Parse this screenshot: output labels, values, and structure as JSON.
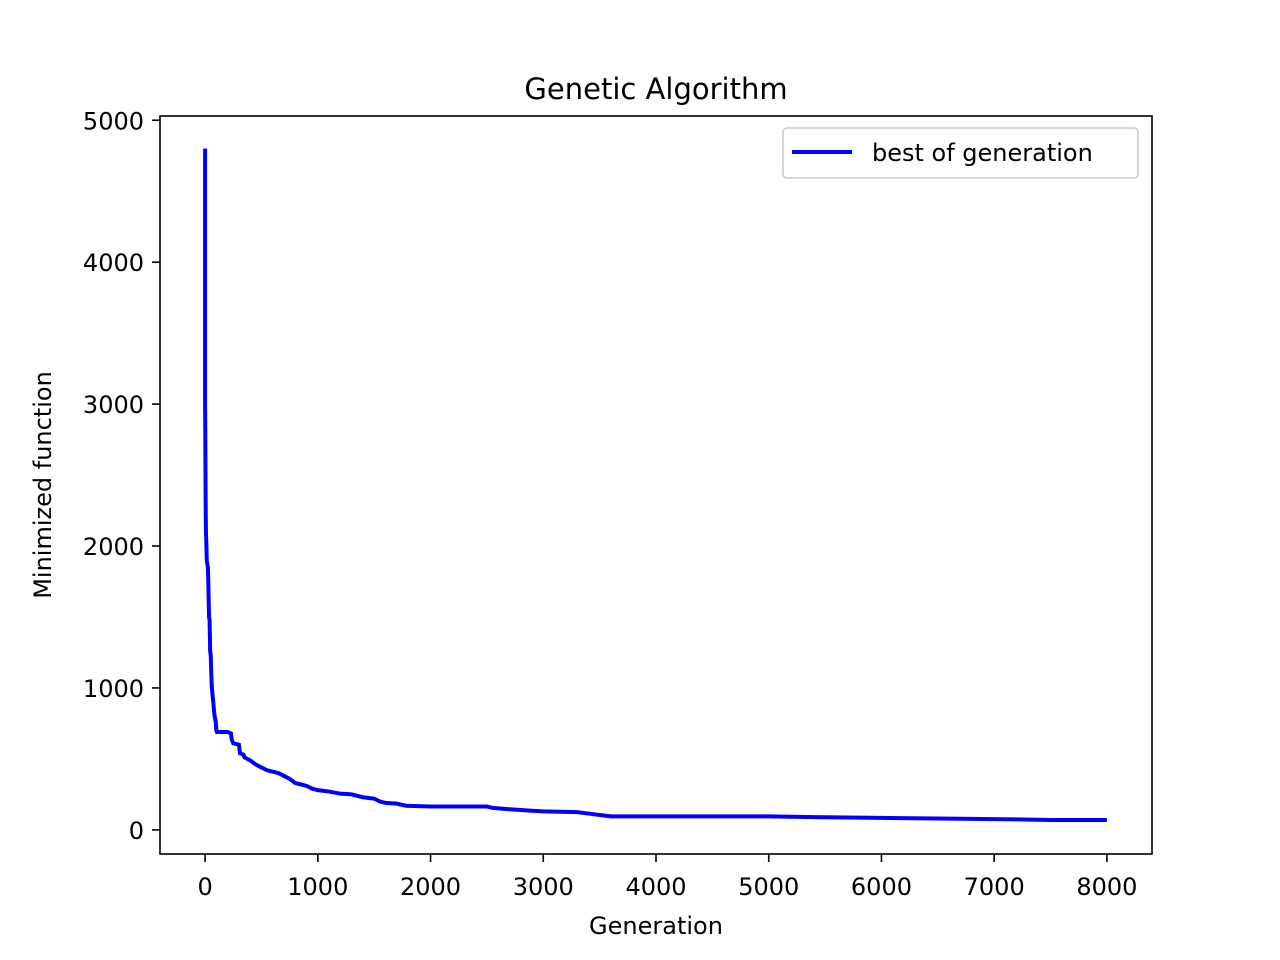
{
  "chart_data": {
    "type": "line",
    "title": "Genetic Algorithm",
    "xlabel": "Generation",
    "ylabel": "Minimized function",
    "xlim": [
      -400,
      8400
    ],
    "ylim": [
      -170,
      5030
    ],
    "xticks": [
      0,
      1000,
      2000,
      3000,
      4000,
      5000,
      6000,
      7000,
      8000
    ],
    "yticks": [
      0,
      1000,
      2000,
      3000,
      4000,
      5000
    ],
    "grid": false,
    "legend_position": "top-right",
    "series": [
      {
        "name": "best of generation",
        "color": "#0000ff",
        "x": [
          0,
          0,
          2,
          4,
          6,
          8,
          10,
          15,
          20,
          25,
          30,
          35,
          40,
          45,
          50,
          55,
          60,
          65,
          70,
          75,
          80,
          85,
          90,
          95,
          100,
          105,
          110,
          120,
          130,
          150,
          200,
          230,
          235,
          250,
          300,
          310,
          340,
          350,
          400,
          450,
          500,
          550,
          600,
          650,
          700,
          750,
          800,
          850,
          900,
          950,
          1000,
          1100,
          1200,
          1300,
          1400,
          1500,
          1550,
          1600,
          1700,
          1780,
          2000,
          2500,
          2550,
          2700,
          2900,
          3000,
          3300,
          3400,
          3500,
          3600,
          4000,
          5000,
          5400,
          5900,
          6500,
          7100,
          7500,
          8000
        ],
        "y": [
          4800,
          3000,
          2800,
          2450,
          2200,
          2080,
          2050,
          1900,
          1870,
          1850,
          1700,
          1500,
          1480,
          1260,
          1230,
          1100,
          1000,
          960,
          920,
          880,
          830,
          800,
          780,
          760,
          700,
          690,
          690,
          690,
          690,
          690,
          690,
          680,
          640,
          610,
          600,
          540,
          530,
          510,
          490,
          460,
          440,
          420,
          410,
          400,
          380,
          360,
          330,
          320,
          310,
          290,
          280,
          270,
          255,
          250,
          230,
          220,
          200,
          190,
          185,
          170,
          165,
          165,
          155,
          145,
          135,
          130,
          125,
          115,
          105,
          95,
          95,
          95,
          90,
          85,
          80,
          75,
          70,
          70
        ]
      }
    ]
  }
}
